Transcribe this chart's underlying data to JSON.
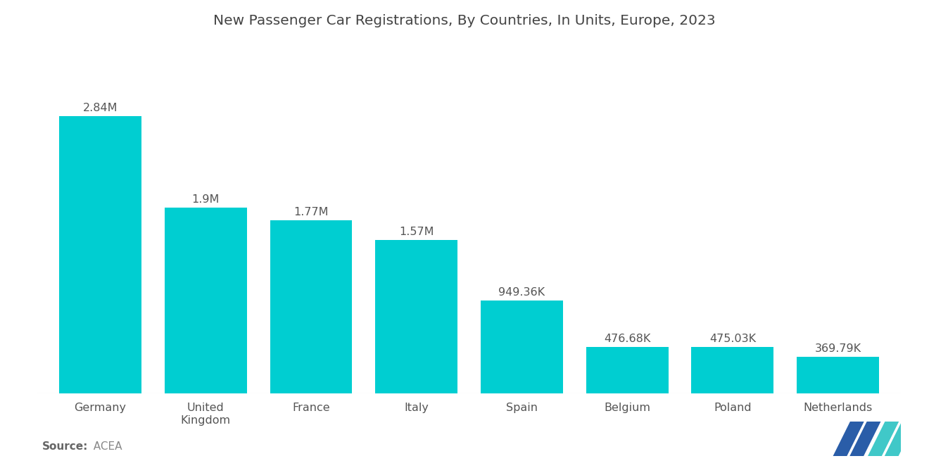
{
  "title": "New Passenger Car Registrations, By Countries, In Units, Europe, 2023",
  "categories": [
    "Germany",
    "United\nKingdom",
    "France",
    "Italy",
    "Spain",
    "Belgium",
    "Poland",
    "Netherlands"
  ],
  "values": [
    2840000,
    1900000,
    1770000,
    1570000,
    949360,
    476680,
    475030,
    369790
  ],
  "labels": [
    "2.84M",
    "1.9M",
    "1.77M",
    "1.57M",
    "949.36K",
    "476.68K",
    "475.03K",
    "369.79K"
  ],
  "bar_color": "#00CED1",
  "background_color": "#ffffff",
  "source_bold": "Source:",
  "source_normal": "  ACEA",
  "title_fontsize": 14.5,
  "label_fontsize": 11.5,
  "tick_fontsize": 11.5,
  "source_fontsize": 11,
  "bar_width": 0.78,
  "ylim_factor": 1.25,
  "logo_blue": "#2A5DA8",
  "logo_teal": "#40C8C8"
}
